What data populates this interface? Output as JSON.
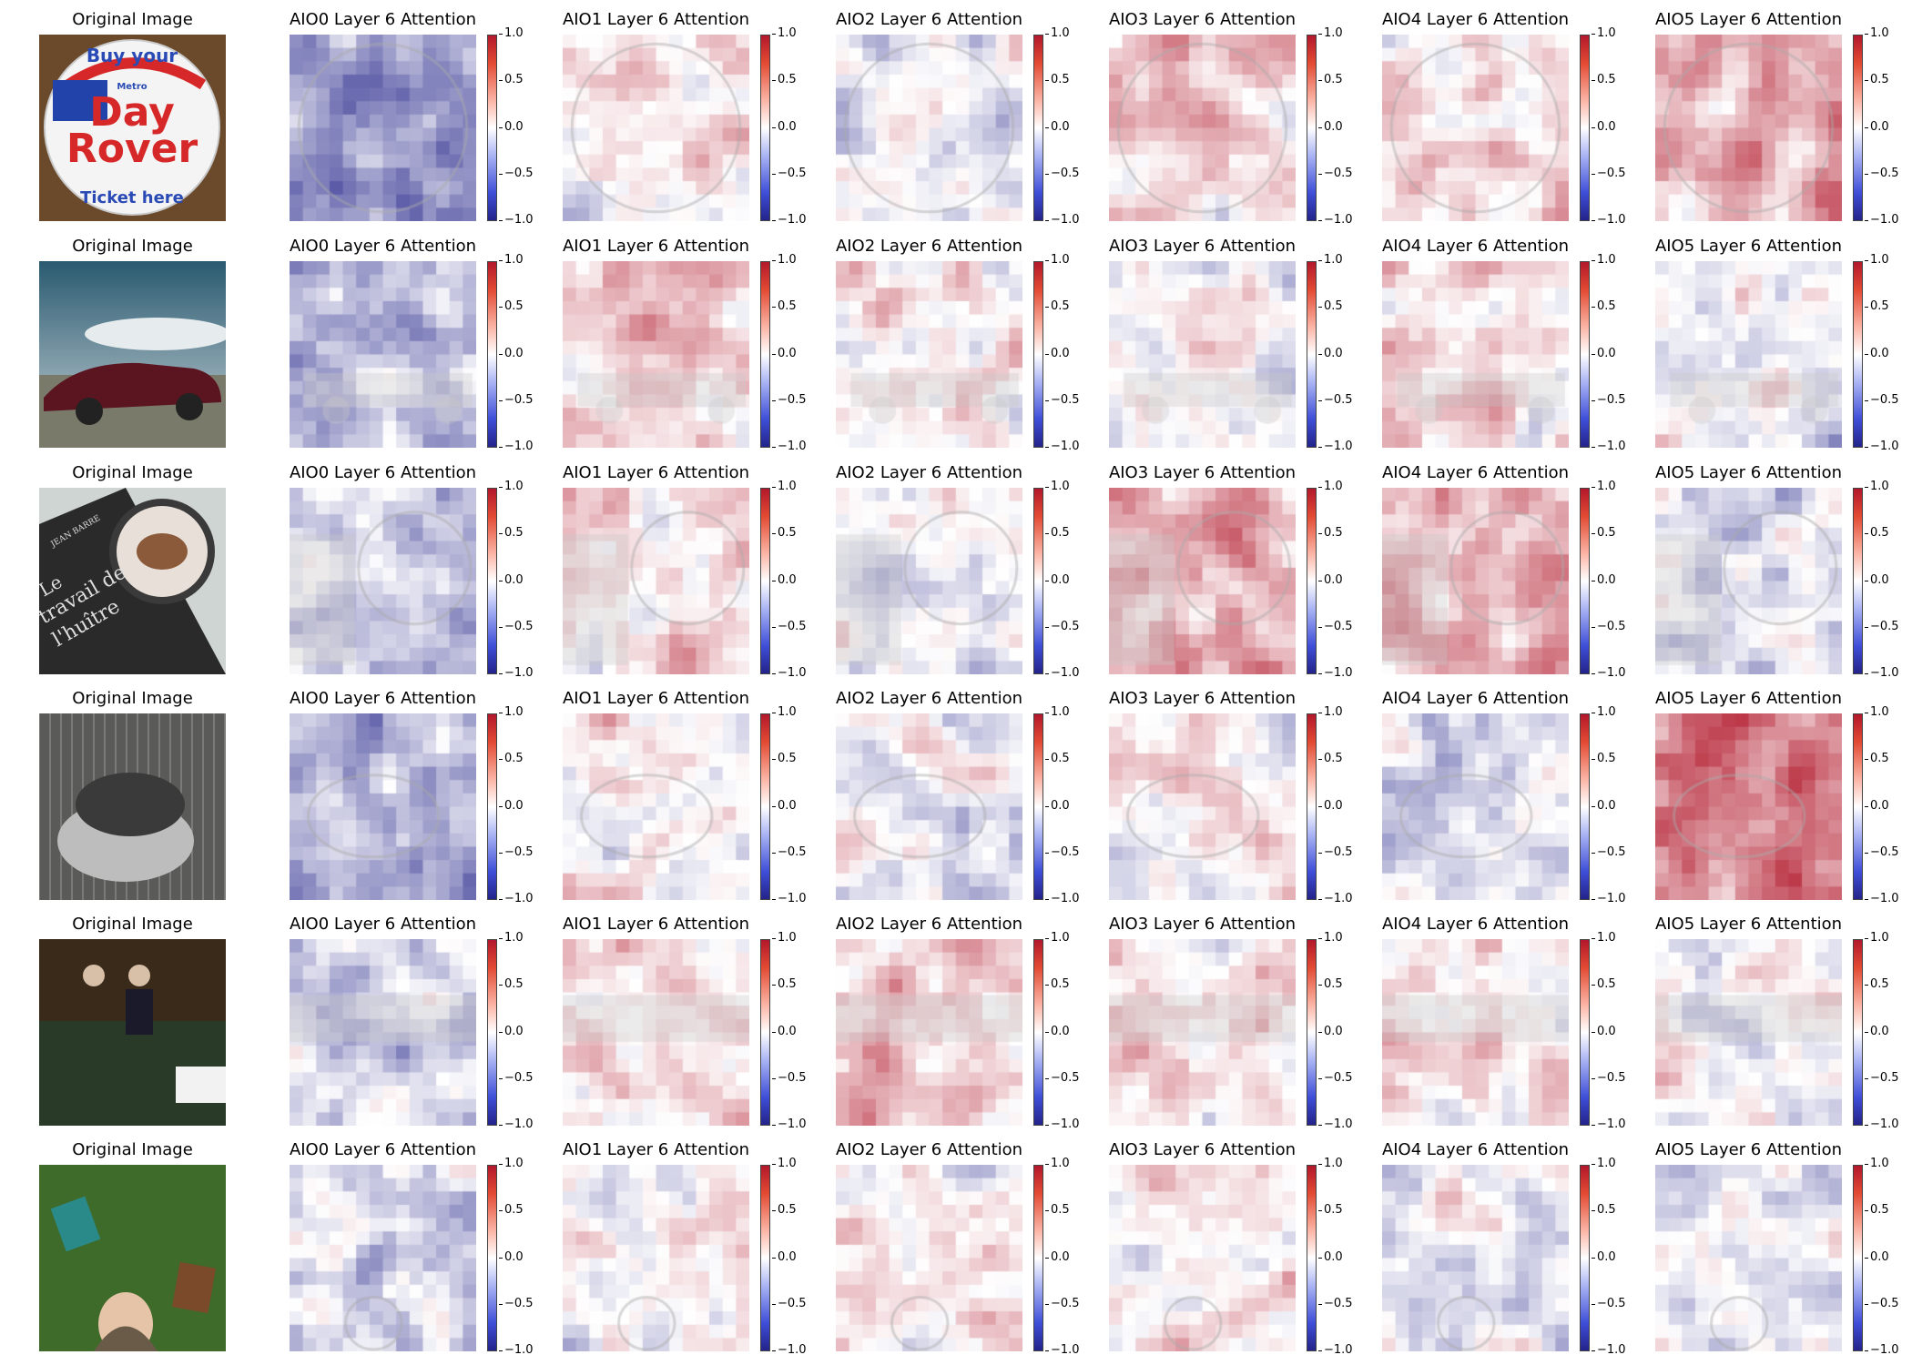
{
  "original_title": "Original Image",
  "heatmap_titles": [
    "AIO0 Layer 6 Attention",
    "AIO1 Layer 6 Attention",
    "AIO2 Layer 6 Attention",
    "AIO3 Layer 6 Attention",
    "AIO4 Layer 6 Attention",
    "AIO5 Layer 6 Attention"
  ],
  "colorbar": {
    "ticks": [
      "1.0",
      "0.5",
      "0.0",
      "−0.5",
      "−1.0"
    ],
    "range": [
      -1.0,
      1.0
    ],
    "colormap": [
      "#b2182b",
      "#ffffff",
      "#23238a"
    ]
  },
  "rows": [
    {
      "image": "rover-ticket-button-image",
      "bias": [
        -0.35,
        0.05,
        -0.05,
        0.15,
        0.1,
        0.25
      ]
    },
    {
      "image": "red-car-image",
      "bias": [
        -0.2,
        0.15,
        0.05,
        0.0,
        0.1,
        -0.05
      ]
    },
    {
      "image": "book-and-coffee-image",
      "bias": [
        -0.2,
        0.05,
        -0.05,
        0.25,
        0.25,
        -0.1
      ]
    },
    {
      "image": "animal-in-cage-image",
      "bias": [
        -0.25,
        0.05,
        -0.05,
        0.05,
        -0.1,
        0.4
      ]
    },
    {
      "image": "meeting-room-image",
      "bias": [
        -0.15,
        0.1,
        0.15,
        0.1,
        0.1,
        -0.05
      ]
    },
    {
      "image": "forest-girl-books-image",
      "bias": [
        -0.1,
        0.0,
        0.05,
        0.1,
        -0.05,
        -0.05
      ]
    }
  ],
  "original_image_text": {
    "row0": {
      "line1": "Buy your",
      "line2": "Day",
      "line3": "Rover",
      "line4": "Ticket here",
      "brand": "Metro"
    },
    "row2": {
      "line1": "JEAN BARRE",
      "line2": "Le",
      "line3": "travail de",
      "line4": "l'huître"
    }
  }
}
